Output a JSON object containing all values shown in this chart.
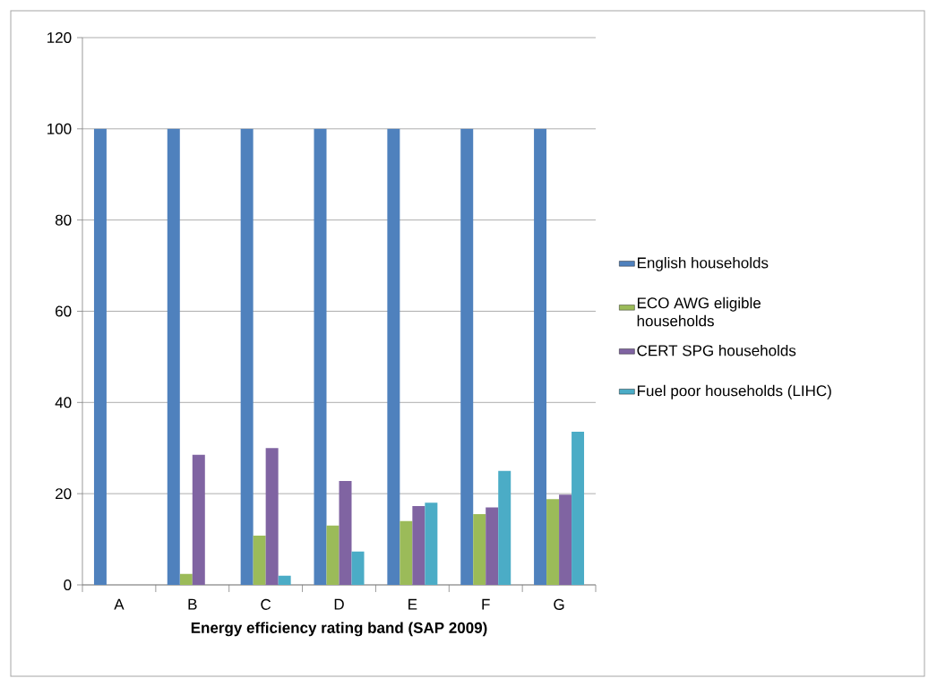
{
  "chart_data": {
    "type": "bar",
    "xlabel": "Energy efficiency rating band (SAP 2009)",
    "categories": [
      "A",
      "B",
      "C",
      "D",
      "E",
      "F",
      "G"
    ],
    "series": [
      {
        "name": "English households",
        "color": "#4f81bd",
        "values": [
          100,
          100,
          100,
          100,
          100,
          100,
          100
        ]
      },
      {
        "name": "ECO AWG eligible households",
        "color": "#9bbb59",
        "values": [
          null,
          2.4,
          10.8,
          13,
          14,
          15.5,
          18.8
        ]
      },
      {
        "name": "CERT SPG households",
        "color": "#8064a2",
        "values": [
          null,
          28.5,
          30,
          22.8,
          17.3,
          17,
          19.8
        ]
      },
      {
        "name": "Fuel poor households (LIHC)",
        "color": "#4bacc6",
        "values": [
          null,
          null,
          2,
          7.3,
          18,
          25,
          33.6
        ]
      }
    ],
    "ylim": [
      0,
      120
    ],
    "yticks": [
      0,
      20,
      40,
      60,
      80,
      100,
      120
    ],
    "grid": "y",
    "legend": "right"
  }
}
